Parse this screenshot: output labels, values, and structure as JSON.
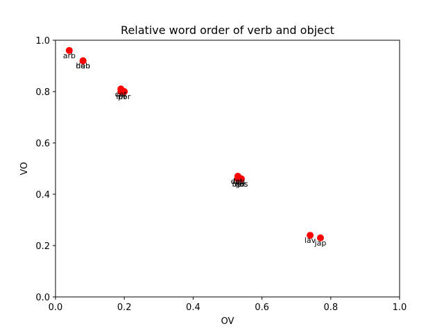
{
  "chart_data": {
    "type": "scatter",
    "title": "Relative word order of verb and object",
    "xlabel": "OV",
    "ylabel": "VO",
    "xlim": [
      0.0,
      1.0
    ],
    "ylim": [
      0.0,
      1.0
    ],
    "xticks": [
      "0.0",
      "0.2",
      "0.4",
      "0.6",
      "0.8",
      "1.0"
    ],
    "yticks": [
      "0.0",
      "0.2",
      "0.4",
      "0.6",
      "0.8",
      "1.0"
    ],
    "grid": false,
    "marker_color": "#ff0000",
    "points": [
      {
        "label": "arb",
        "x": 0.04,
        "y": 0.96
      },
      {
        "label": "heb",
        "x": 0.08,
        "y": 0.92
      },
      {
        "label": "dan",
        "x": 0.08,
        "y": 0.92
      },
      {
        "label": "cat",
        "x": 0.19,
        "y": 0.81
      },
      {
        "label": "por",
        "x": 0.2,
        "y": 0.8
      },
      {
        "label": "fin",
        "x": 0.19,
        "y": 0.8
      },
      {
        "label": "lat",
        "x": 0.53,
        "y": 0.47
      },
      {
        "label": "grc",
        "x": 0.54,
        "y": 0.46
      },
      {
        "label": "bel",
        "x": 0.53,
        "y": 0.46
      },
      {
        "label": "eus",
        "x": 0.54,
        "y": 0.46
      },
      {
        "label": "deu",
        "x": 0.53,
        "y": 0.47
      },
      {
        "label": "lav",
        "x": 0.74,
        "y": 0.24
      },
      {
        "label": "jap",
        "x": 0.77,
        "y": 0.23
      }
    ]
  }
}
